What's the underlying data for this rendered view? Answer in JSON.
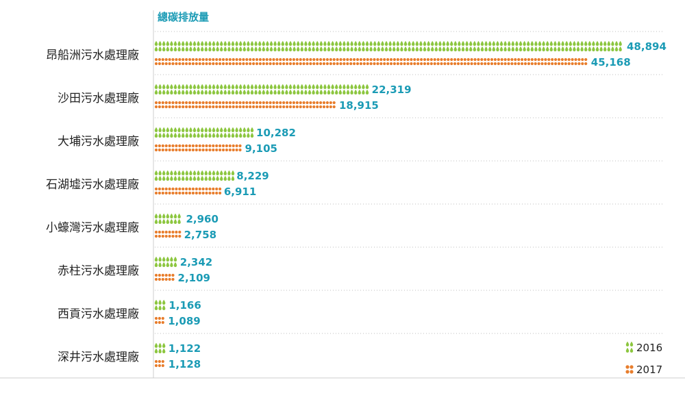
{
  "chart_data": {
    "type": "bar",
    "title": "總碳排放量",
    "categories": [
      "昂船洲污水處理廠",
      "沙田污水處理廠",
      "大埔污水處理廠",
      "石湖墟污水處理廠",
      "小蠔灣污水處理廠",
      "赤柱污水處理廠",
      "西貢污水處理廠",
      "深井污水處理廠"
    ],
    "series": [
      {
        "name": "2016",
        "values": [
          48894,
          22319,
          10282,
          8229,
          2960,
          2342,
          1166,
          1122
        ],
        "labels": [
          "48,894",
          "22,319",
          "10,282",
          "8,229",
          "2,960",
          "2,342",
          "1,166",
          "1,122"
        ],
        "color": "#8cc63f"
      },
      {
        "name": "2017",
        "values": [
          45168,
          18915,
          9105,
          6911,
          2758,
          2109,
          1089,
          1128
        ],
        "labels": [
          "45,168",
          "18,915",
          "9,105",
          "6,911",
          "2,758",
          "2,109",
          "1,089",
          "1,128"
        ],
        "color": "#e87d2c"
      }
    ],
    "orientation": "horizontal",
    "xlim": [
      0,
      48894
    ],
    "grid": true,
    "legend": "bottom-right",
    "axis_color": "#cccccc"
  }
}
